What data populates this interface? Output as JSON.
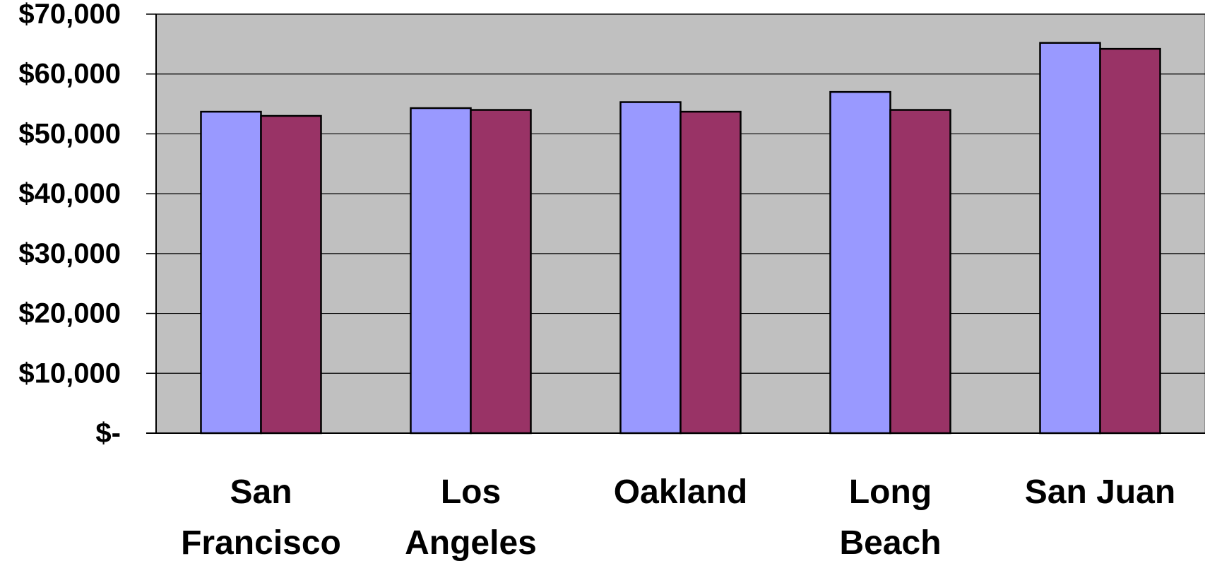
{
  "chart_data": {
    "type": "bar",
    "title": "",
    "xlabel": "",
    "ylabel": "",
    "categories": [
      [
        "San",
        "Francisco"
      ],
      [
        "Los",
        "Angeles"
      ],
      [
        "Oakland"
      ],
      [
        "Long",
        "Beach"
      ],
      [
        "San Juan"
      ]
    ],
    "series": [
      {
        "values": [
          53700,
          54300,
          55300,
          57000,
          65200
        ],
        "color": "#9999ff"
      },
      {
        "values": [
          53000,
          54000,
          53700,
          54000,
          64200
        ],
        "color": "#993366"
      }
    ],
    "ylim": [
      0,
      70000
    ],
    "yticks": [
      {
        "value": 0,
        "label": "$-"
      },
      {
        "value": 10000,
        "label": "$10,000"
      },
      {
        "value": 20000,
        "label": "$20,000"
      },
      {
        "value": 30000,
        "label": "$30,000"
      },
      {
        "value": 40000,
        "label": "$40,000"
      },
      {
        "value": 50000,
        "label": "$50,000"
      },
      {
        "value": 60000,
        "label": "$60,000"
      },
      {
        "value": 70000,
        "label": "$70,000"
      }
    ],
    "grid": true,
    "legend": "none",
    "plot_background": "#c0c0c0"
  }
}
